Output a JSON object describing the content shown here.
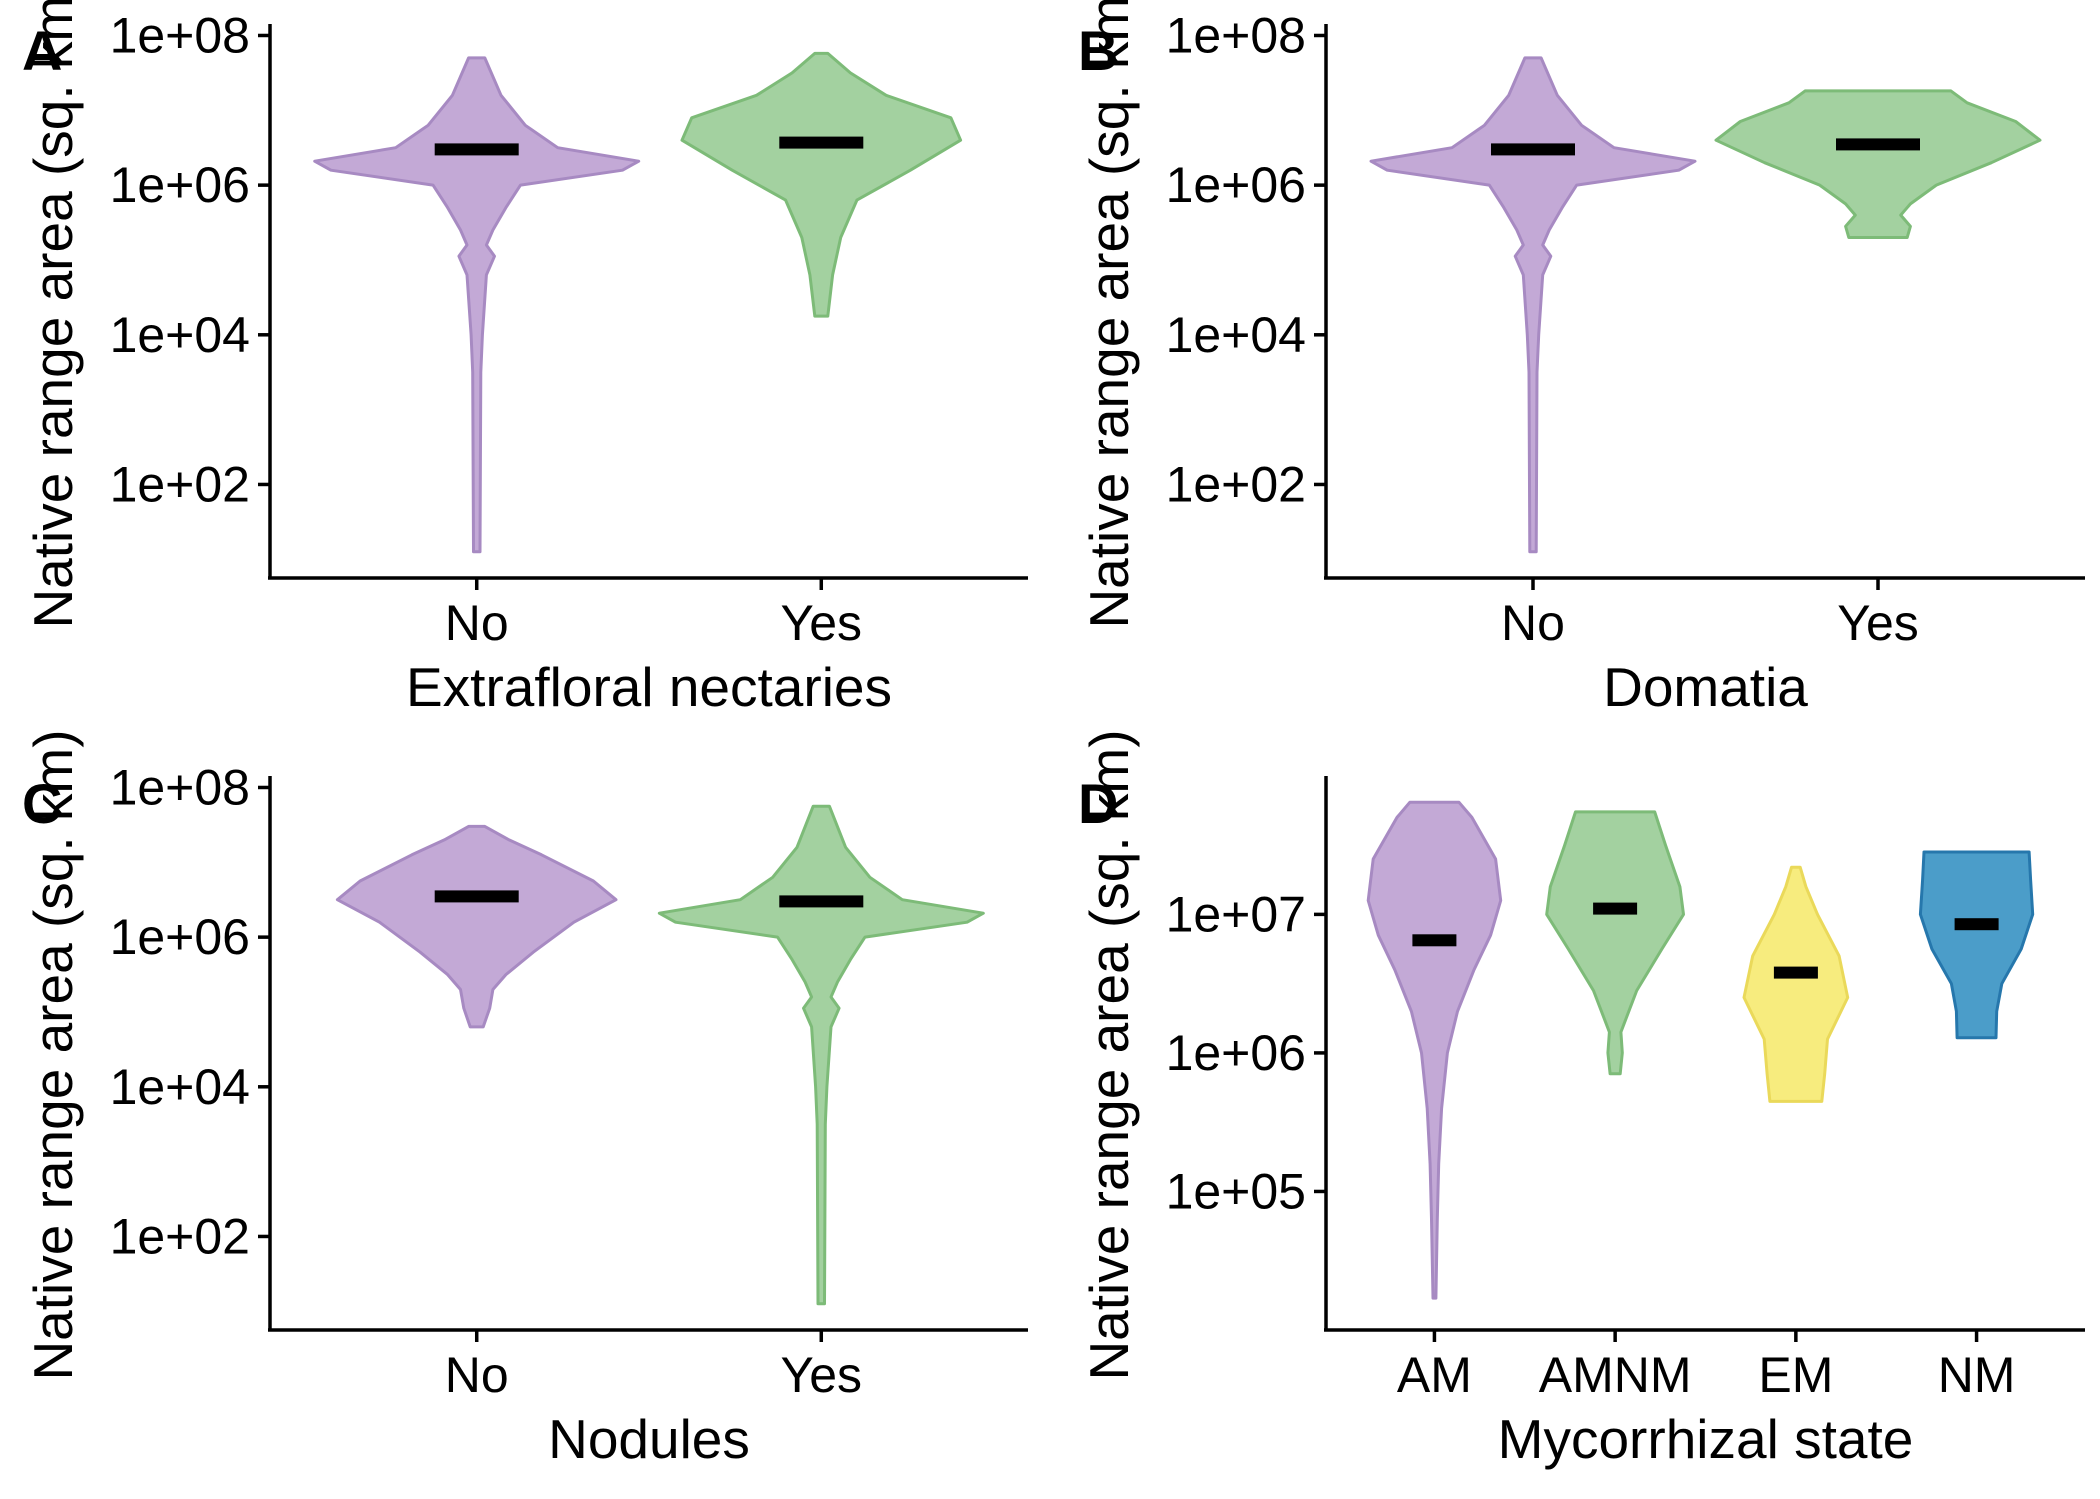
{
  "figure": {
    "colors": {
      "violet": "#c3a9d6",
      "violet_stroke": "#a78ac2",
      "green": "#a3d1a0",
      "green_stroke": "#7dbb78",
      "yellow": "#f7ec7e",
      "yellow_stroke": "#ead95a",
      "blue": "#4b9dc9",
      "blue_stroke": "#2677ac",
      "median": "#000000"
    }
  },
  "chart_data": [
    {
      "panel": "A",
      "type": "violin",
      "title": "",
      "xlabel": "Extrafloral nectaries",
      "ylabel": "Native range area (sq. km)",
      "y_scale": "log10",
      "yticks": [
        "1e+02",
        "1e+04",
        "1e+06",
        "1e+08"
      ],
      "yticks_log10": [
        2,
        4,
        6,
        8
      ],
      "ylim_log10": [
        0.75,
        8.1
      ],
      "categories": [
        "No",
        "Yes"
      ],
      "series": [
        {
          "category": "No",
          "color": "violet",
          "median": 3000000,
          "min": 13,
          "max": 50000000,
          "density_log10": [
            [
              1.1,
              0.02
            ],
            [
              3.5,
              0.025
            ],
            [
              4.0,
              0.035
            ],
            [
              4.8,
              0.06
            ],
            [
              5.05,
              0.11
            ],
            [
              5.2,
              0.06
            ],
            [
              5.4,
              0.1
            ],
            [
              5.7,
              0.18
            ],
            [
              6.0,
              0.27
            ],
            [
              6.2,
              0.9
            ],
            [
              6.32,
              1.0
            ],
            [
              6.5,
              0.5
            ],
            [
              6.8,
              0.3
            ],
            [
              7.2,
              0.15
            ],
            [
              7.7,
              0.05
            ]
          ]
        },
        {
          "category": "Yes",
          "color": "green",
          "median": 3700000,
          "min": 18000,
          "max": 58000000,
          "density_log10": [
            [
              4.25,
              0.04
            ],
            [
              4.8,
              0.07
            ],
            [
              5.3,
              0.12
            ],
            [
              5.8,
              0.22
            ],
            [
              6.2,
              0.55
            ],
            [
              6.6,
              0.86
            ],
            [
              6.9,
              0.8
            ],
            [
              7.2,
              0.4
            ],
            [
              7.5,
              0.18
            ],
            [
              7.76,
              0.04
            ]
          ]
        }
      ]
    },
    {
      "panel": "B",
      "type": "violin",
      "title": "",
      "xlabel": "Domatia",
      "ylabel": "Native range area (sq. km)",
      "y_scale": "log10",
      "yticks": [
        "1e+02",
        "1e+04",
        "1e+06",
        "1e+08"
      ],
      "yticks_log10": [
        2,
        4,
        6,
        8
      ],
      "ylim_log10": [
        0.75,
        8.1
      ],
      "categories": [
        "No",
        "Yes"
      ],
      "series": [
        {
          "category": "No",
          "color": "violet",
          "median": 3000000,
          "min": 13,
          "max": 50000000,
          "density_log10": [
            [
              1.1,
              0.02
            ],
            [
              3.5,
              0.025
            ],
            [
              4.0,
              0.035
            ],
            [
              4.8,
              0.06
            ],
            [
              5.05,
              0.11
            ],
            [
              5.2,
              0.06
            ],
            [
              5.4,
              0.1
            ],
            [
              5.7,
              0.18
            ],
            [
              6.0,
              0.27
            ],
            [
              6.2,
              0.9
            ],
            [
              6.32,
              1.0
            ],
            [
              6.5,
              0.5
            ],
            [
              6.8,
              0.3
            ],
            [
              7.2,
              0.15
            ],
            [
              7.7,
              0.05
            ]
          ]
        },
        {
          "category": "Yes",
          "color": "green",
          "median": 3500000,
          "min": 200000,
          "max": 18000000,
          "density_log10": [
            [
              5.3,
              0.18
            ],
            [
              5.45,
              0.2
            ],
            [
              5.6,
              0.14
            ],
            [
              5.75,
              0.2
            ],
            [
              6.0,
              0.36
            ],
            [
              6.3,
              0.7
            ],
            [
              6.6,
              1.0
            ],
            [
              6.85,
              0.85
            ],
            [
              7.1,
              0.55
            ],
            [
              7.26,
              0.45
            ]
          ]
        }
      ]
    },
    {
      "panel": "C",
      "type": "violin",
      "title": "",
      "xlabel": "Nodules",
      "ylabel": "Native range area (sq. km)",
      "y_scale": "log10",
      "yticks": [
        "1e+02",
        "1e+04",
        "1e+06",
        "1e+08"
      ],
      "yticks_log10": [
        2,
        4,
        6,
        8
      ],
      "ylim_log10": [
        0.75,
        8.1
      ],
      "categories": [
        "No",
        "Yes"
      ],
      "series": [
        {
          "category": "No",
          "color": "violet",
          "median": 3500000,
          "min": 60000,
          "max": 30000000,
          "density_log10": [
            [
              4.8,
              0.04
            ],
            [
              5.05,
              0.08
            ],
            [
              5.3,
              0.1
            ],
            [
              5.5,
              0.18
            ],
            [
              5.8,
              0.35
            ],
            [
              6.2,
              0.6
            ],
            [
              6.5,
              0.86
            ],
            [
              6.75,
              0.72
            ],
            [
              7.1,
              0.4
            ],
            [
              7.3,
              0.2
            ],
            [
              7.48,
              0.05
            ]
          ]
        },
        {
          "category": "Yes",
          "color": "green",
          "median": 3000000,
          "min": 13,
          "max": 58000000,
          "density_log10": [
            [
              1.1,
              0.02
            ],
            [
              3.5,
              0.025
            ],
            [
              4.0,
              0.035
            ],
            [
              4.8,
              0.06
            ],
            [
              5.05,
              0.11
            ],
            [
              5.2,
              0.06
            ],
            [
              5.4,
              0.1
            ],
            [
              5.7,
              0.18
            ],
            [
              6.0,
              0.27
            ],
            [
              6.2,
              0.9
            ],
            [
              6.32,
              1.0
            ],
            [
              6.5,
              0.5
            ],
            [
              6.8,
              0.3
            ],
            [
              7.2,
              0.15
            ],
            [
              7.75,
              0.05
            ]
          ]
        }
      ]
    },
    {
      "panel": "D",
      "type": "violin",
      "title": "",
      "xlabel": "Mycorrhizal state",
      "ylabel": "Native range area (sq. km)",
      "y_scale": "log10",
      "yticks": [
        "1e+05",
        "1e+06",
        "1e+07"
      ],
      "yticks_log10": [
        5,
        6,
        7
      ],
      "ylim_log10": [
        4.0,
        7.97
      ],
      "categories": [
        "AM",
        "AMNM",
        "EM",
        "NM"
      ],
      "series": [
        {
          "category": "AM",
          "color": "violet",
          "median": 6500000,
          "min": 17000,
          "max": 65000000,
          "density_log10": [
            [
              4.23,
              0.02
            ],
            [
              4.8,
              0.04
            ],
            [
              5.2,
              0.06
            ],
            [
              5.6,
              0.1
            ],
            [
              6.0,
              0.18
            ],
            [
              6.3,
              0.32
            ],
            [
              6.6,
              0.55
            ],
            [
              6.85,
              0.78
            ],
            [
              7.1,
              0.92
            ],
            [
              7.4,
              0.85
            ],
            [
              7.7,
              0.52
            ],
            [
              7.81,
              0.34
            ]
          ]
        },
        {
          "category": "AMNM",
          "color": "green",
          "median": 11000000,
          "min": 700000,
          "max": 55000000,
          "density_log10": [
            [
              5.85,
              0.07
            ],
            [
              6.0,
              0.1
            ],
            [
              6.15,
              0.08
            ],
            [
              6.45,
              0.3
            ],
            [
              6.75,
              0.65
            ],
            [
              7.0,
              0.95
            ],
            [
              7.2,
              0.9
            ],
            [
              7.5,
              0.7
            ],
            [
              7.74,
              0.55
            ]
          ]
        },
        {
          "category": "EM",
          "color": "yellow",
          "median": 3800000,
          "min": 450000,
          "max": 22000000,
          "density_log10": [
            [
              5.65,
              0.36
            ],
            [
              5.85,
              0.4
            ],
            [
              6.1,
              0.44
            ],
            [
              6.4,
              0.72
            ],
            [
              6.7,
              0.6
            ],
            [
              7.0,
              0.3
            ],
            [
              7.2,
              0.14
            ],
            [
              7.34,
              0.06
            ]
          ]
        },
        {
          "category": "NM",
          "color": "blue",
          "median": 8500000,
          "min": 1300000,
          "max": 28000000,
          "density_log10": [
            [
              6.11,
              0.27
            ],
            [
              6.3,
              0.28
            ],
            [
              6.5,
              0.35
            ],
            [
              6.75,
              0.62
            ],
            [
              7.0,
              0.78
            ],
            [
              7.25,
              0.75
            ],
            [
              7.45,
              0.73
            ]
          ]
        }
      ]
    }
  ]
}
